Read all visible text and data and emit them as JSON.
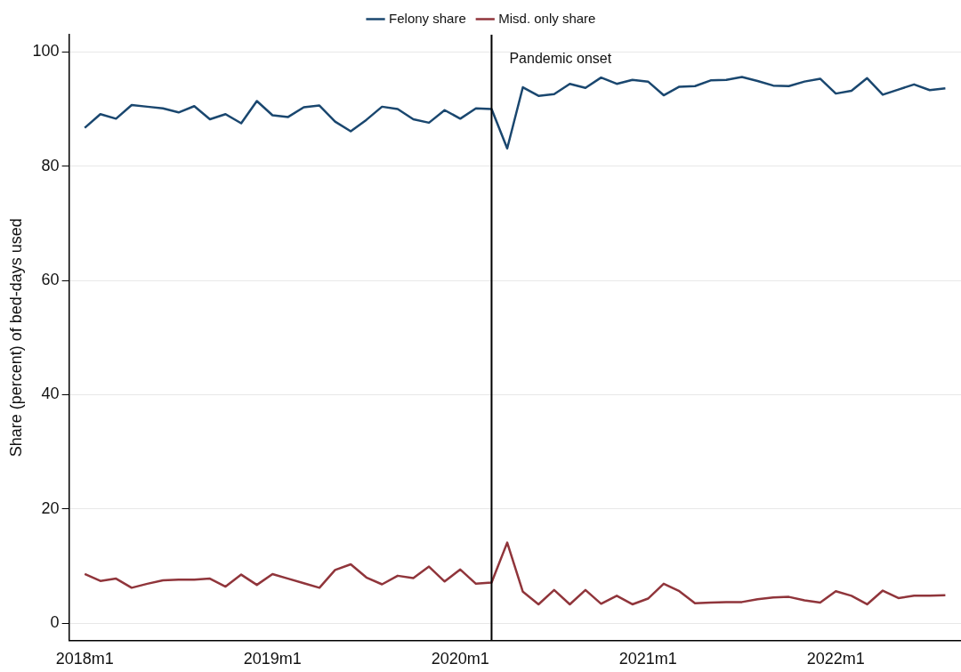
{
  "chart_data": {
    "type": "line",
    "ylabel": "Share (percent) of bed-days used",
    "x": [
      "2018-01",
      "2018-02",
      "2018-03",
      "2018-04",
      "2018-05",
      "2018-06",
      "2018-07",
      "2018-08",
      "2018-09",
      "2018-10",
      "2018-11",
      "2018-12",
      "2019-01",
      "2019-02",
      "2019-03",
      "2019-04",
      "2019-05",
      "2019-06",
      "2019-07",
      "2019-08",
      "2019-09",
      "2019-10",
      "2019-11",
      "2019-12",
      "2020-01",
      "2020-02",
      "2020-03",
      "2020-04",
      "2020-05",
      "2020-06",
      "2020-07",
      "2020-08",
      "2020-09",
      "2020-10",
      "2020-11",
      "2020-12",
      "2021-01",
      "2021-02",
      "2021-03",
      "2021-04",
      "2021-05",
      "2021-06",
      "2021-07",
      "2021-08",
      "2021-09",
      "2021-10",
      "2021-11",
      "2021-12",
      "2022-01",
      "2022-02",
      "2022-03",
      "2022-04",
      "2022-05",
      "2022-06",
      "2022-07",
      "2022-08"
    ],
    "series": [
      {
        "name": "Felony share",
        "color": "#1a476f",
        "values": [
          86.7,
          89.1,
          88.3,
          90.7,
          90.4,
          90.1,
          89.4,
          90.5,
          88.2,
          89.1,
          87.5,
          91.4,
          88.9,
          88.6,
          90.3,
          90.6,
          87.8,
          86.1,
          88.1,
          90.4,
          90.0,
          88.2,
          87.6,
          89.8,
          88.3,
          90.1,
          90.0,
          83.1,
          93.8,
          92.3,
          92.6,
          94.4,
          93.7,
          95.5,
          94.4,
          95.1,
          94.8,
          92.4,
          93.9,
          94.0,
          95.0,
          95.1,
          95.6,
          94.9,
          94.1,
          94.0,
          94.8,
          95.3,
          92.7,
          93.2,
          95.4,
          92.5,
          93.4,
          94.3,
          93.3,
          93.6
        ]
      },
      {
        "name": "Misd. only share",
        "color": "#90353b",
        "values": [
          8.6,
          7.4,
          7.8,
          6.2,
          6.9,
          7.5,
          7.6,
          7.6,
          7.8,
          6.4,
          8.5,
          6.7,
          8.6,
          7.8,
          7.0,
          6.2,
          9.3,
          10.3,
          8.0,
          6.8,
          8.3,
          7.9,
          9.9,
          7.3,
          9.4,
          6.9,
          7.1,
          14.1,
          5.5,
          3.3,
          5.8,
          3.3,
          5.8,
          3.4,
          4.8,
          3.3,
          4.3,
          6.9,
          5.6,
          3.5,
          3.6,
          3.7,
          3.7,
          4.2,
          4.5,
          4.6,
          4.0,
          3.6,
          5.6,
          4.8,
          3.3,
          5.7,
          4.4,
          4.8,
          4.8,
          4.9
        ]
      }
    ],
    "xlim": [
      "2017-12",
      "2022-09"
    ],
    "xticks": [
      {
        "value": "2018-01",
        "label": "2018m1"
      },
      {
        "value": "2019-01",
        "label": "2019m1"
      },
      {
        "value": "2020-01",
        "label": "2020m1"
      },
      {
        "value": "2021-01",
        "label": "2021m1"
      },
      {
        "value": "2022-01",
        "label": "2022m1"
      }
    ],
    "ylim": [
      -3,
      103
    ],
    "yticks": [
      0,
      20,
      40,
      60,
      80,
      100
    ],
    "grid": "y",
    "legend": "top",
    "marker": "none",
    "line_style": "solid",
    "ref_lines": [
      {
        "axis": "x",
        "value": "2020-03",
        "label": "Pandemic onset",
        "color": "#000000"
      }
    ]
  }
}
